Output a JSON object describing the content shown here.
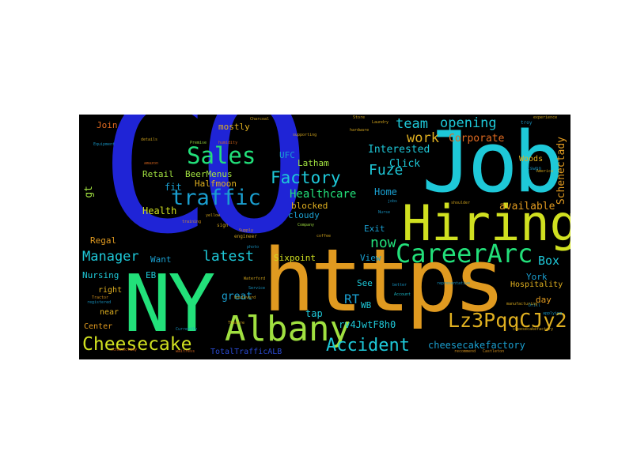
{
  "colors": {
    "background": "#000000",
    "page": "#ffffff",
    "palette": [
      "#1f24d6",
      "#1ec8d8",
      "#e0b020",
      "#e09a20",
      "#22e07a",
      "#1a9fd0",
      "#d0e020",
      "#2a4ad0",
      "#a0e040",
      "#30c050",
      "#e06a20"
    ]
  },
  "words": {
    "co": "CO",
    "job": "Job",
    "hiring": "Hiring",
    "https": "https",
    "ny": "NY",
    "albany": "Albany",
    "careerarc": "CareerArc",
    "cheesecake": "Cheesecake",
    "accident": "Accident",
    "lz3": "Lz3PqqCJy2",
    "sales": "Sales",
    "traffic": "traffic",
    "manager": "Manager",
    "latest": "latest",
    "factory": "Factory",
    "healthcare": "Healthcare",
    "fuze": "Fuze",
    "now": "now",
    "opening": "opening",
    "team": "team",
    "work": "work",
    "corporate": "Corporate",
    "box": "Box",
    "schenectady": "Schenectady",
    "available": "available",
    "woods": "Woods",
    "click": "Click",
    "interested": "Interested",
    "home": "Home",
    "exit": "Exit",
    "view": "View",
    "rt": "RT",
    "wb": "WB",
    "see": "See",
    "tap": "tap",
    "rv4": "rv4JwtF8h0",
    "cheesecakefactory": "cheesecakefactory",
    "york": "York",
    "hospitality": "Hospitality",
    "day": "day",
    "sixpoint": "Sixpoint",
    "great": "great",
    "totaltrafficalb": "TotalTrafficALB",
    "latham": "Latham",
    "blocked": "blocked",
    "cloudy": "cloudy",
    "ufc": "UFC",
    "beermenus": "BeerMenus",
    "halfmoon": "Halfmoon",
    "retail": "Retail",
    "fit": "fit",
    "health": "Health",
    "gt": "gt",
    "join": "Join",
    "mostly": "mostly",
    "regal": "Regal",
    "want": "Want",
    "nursing": "Nursing",
    "eb": "EB",
    "right": "right",
    "near": "near",
    "center": "Center",
    "premise": "Premise",
    "humidity": "humidity",
    "training": "training",
    "yellow": "yellow",
    "sign": "sign",
    "engineer": "engineer",
    "supply": "Supply",
    "photo": "photo",
    "waterford": "Waterford",
    "service": "Service",
    "boulevard": "boulevard",
    "better": "better",
    "account": "Account",
    "recommend": "recommend",
    "castleton": "Castleton",
    "store": "Store",
    "laundry": "Laundry",
    "hardware": "hardware",
    "supporting": "supporting",
    "company": "Company",
    "coffee": "coffee",
    "nurse": "Nurse",
    "jobs": "jobs",
    "troy": "troy",
    "experience": "experience",
    "america": "America",
    "tswpn": "tswpn",
    "shoulder": "shoulder",
    "drill": "Drill",
    "charcoal": "Charcoal",
    "equipment": "Equipment",
    "details": "details",
    "amazon": "amazon",
    "tractor": "Tractor",
    "registered": "registered",
    "currently": "Currently",
    "theatre": "Theatre",
    "waitress": "waitress",
    "schenectady_small": "schenectady",
    "representative": "representative",
    "manufacturing": "manufacturing",
    "applying": "applying",
    "cheesecakefactory_small": "cheesecakefactory"
  }
}
